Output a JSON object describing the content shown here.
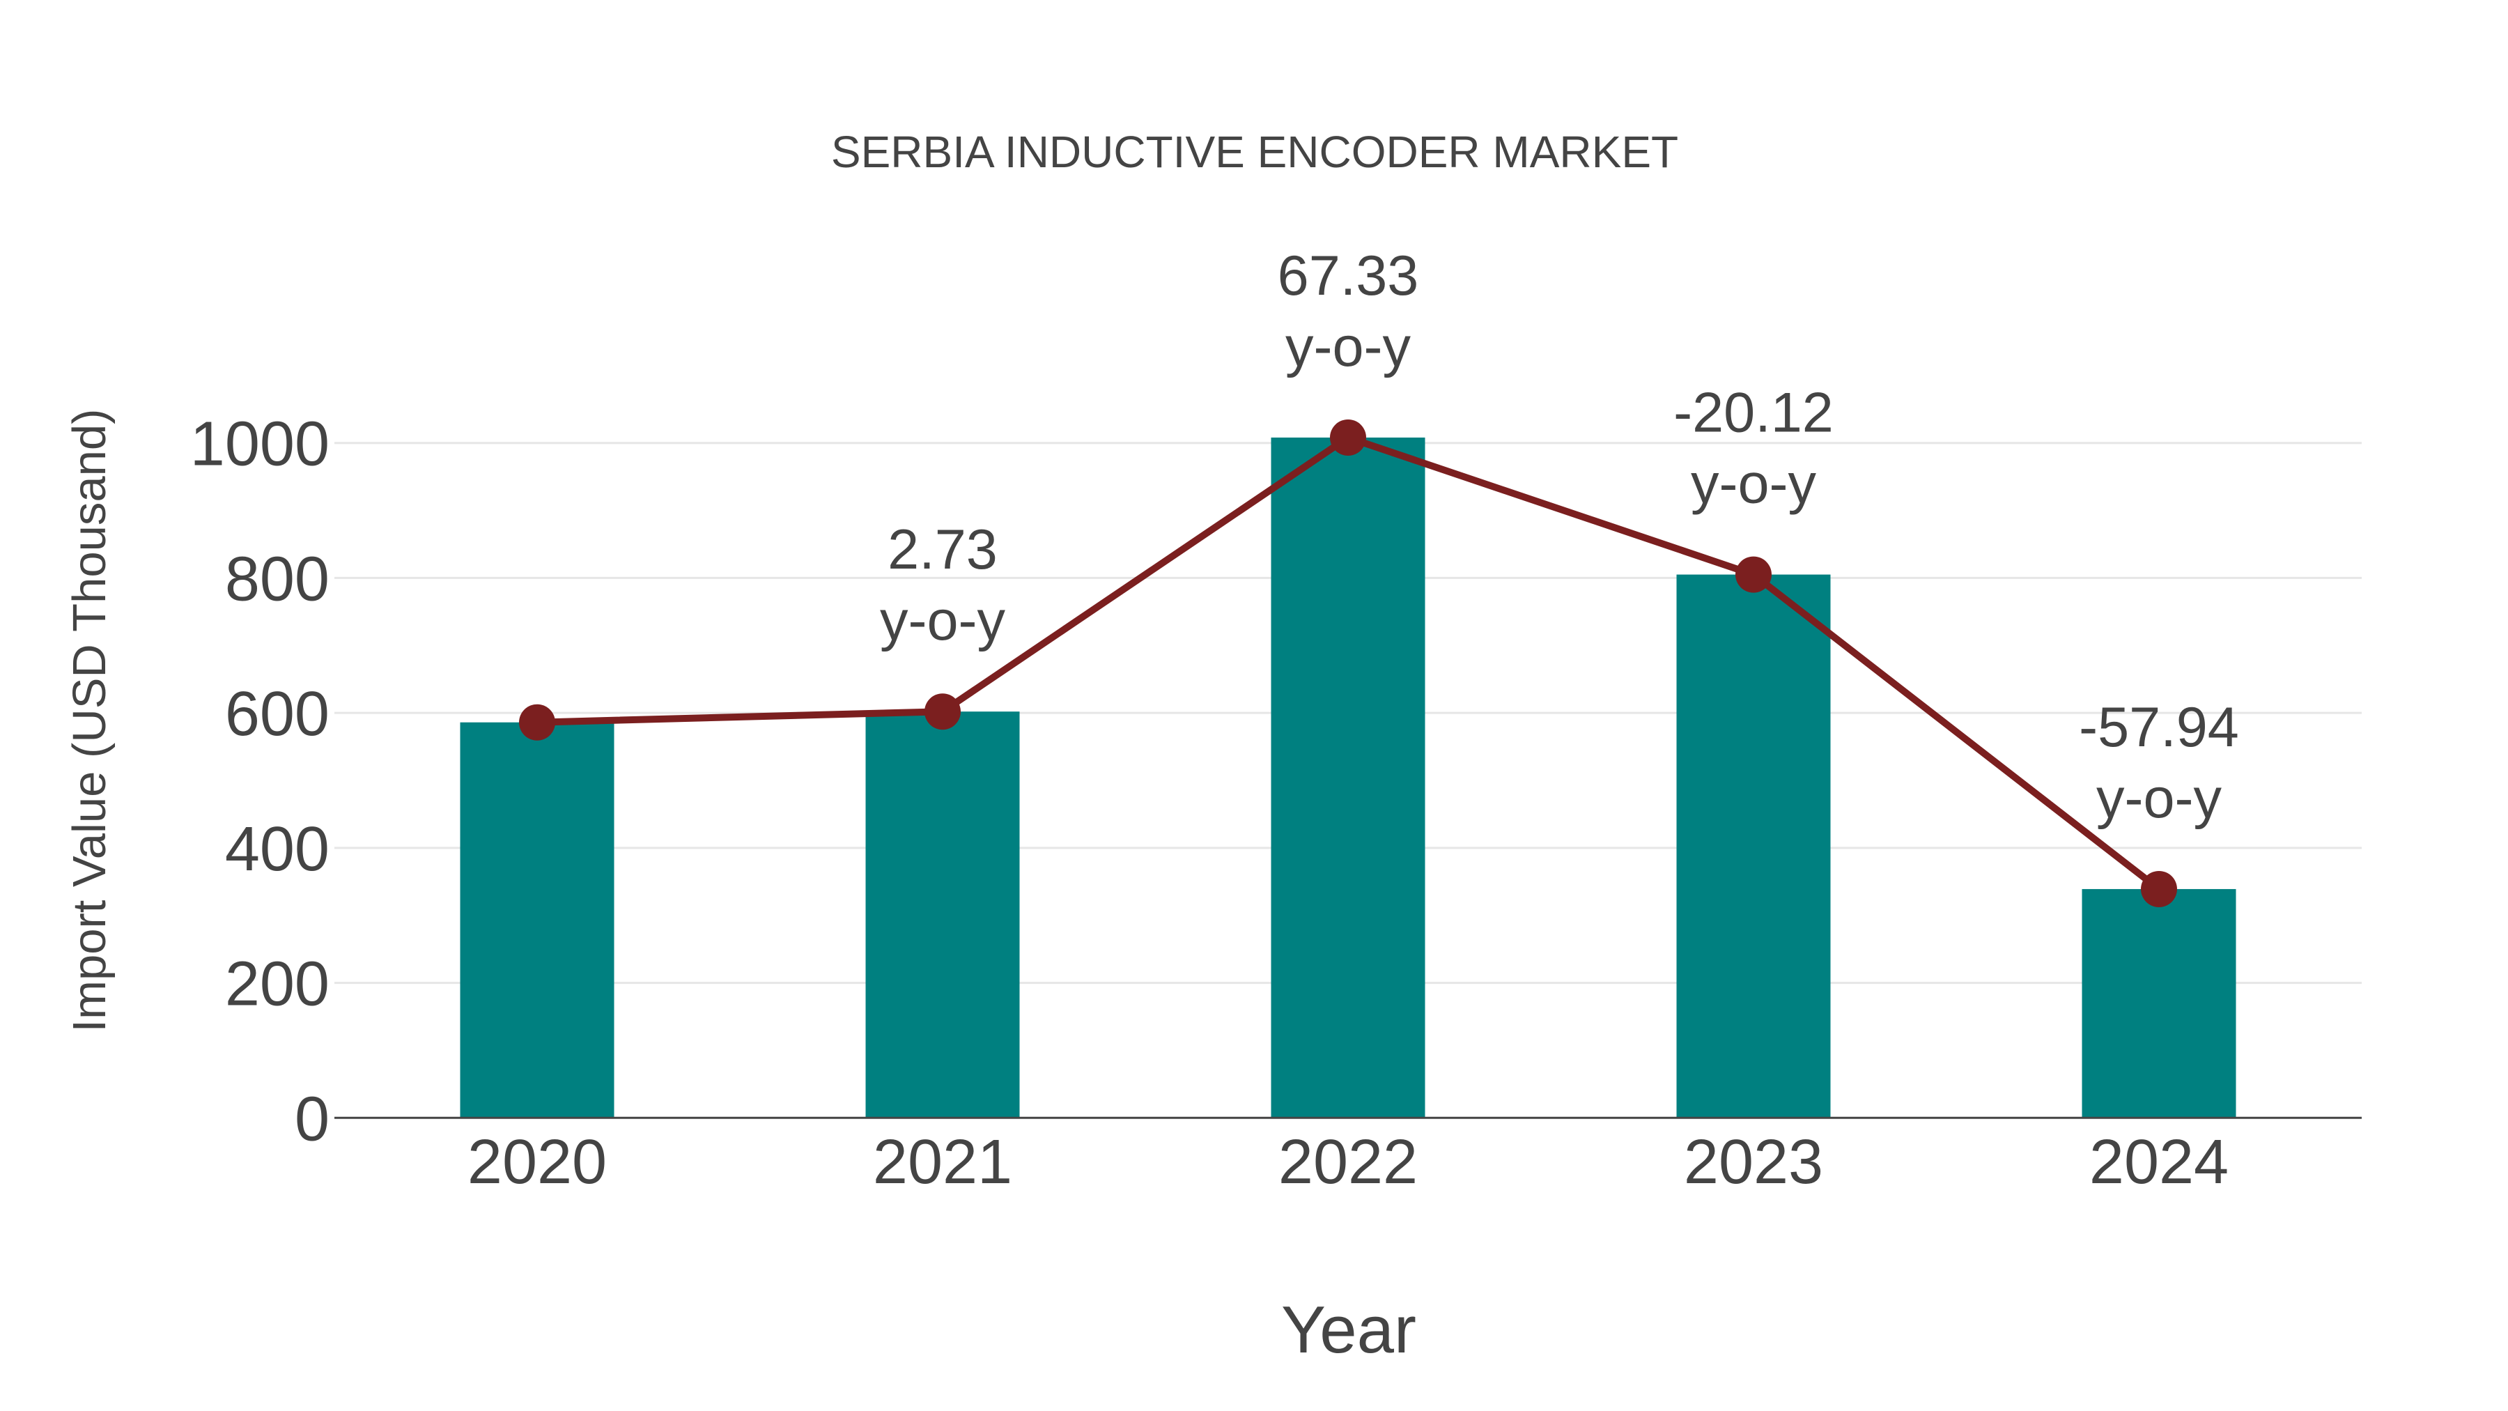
{
  "chart_data": {
    "type": "bar",
    "title": "SERBIA INDUCTIVE ENCODER MARKET",
    "xlabel": "Year",
    "ylabel": "Import Value (USD Thousand)",
    "categories": [
      "2020",
      "2021",
      "2022",
      "2023",
      "2024"
    ],
    "series": [
      {
        "name": "Import Value",
        "type": "bar",
        "color": "#008080",
        "values": [
          586,
          602,
          1008,
          805,
          339
        ]
      },
      {
        "name": "Import Value trend",
        "type": "line",
        "color": "#7b1f1f",
        "marker": "circle",
        "values": [
          586,
          602,
          1008,
          805,
          339
        ]
      }
    ],
    "annotations": [
      {
        "category": "2021",
        "value": "2.73",
        "suffix": "y-o-y"
      },
      {
        "category": "2022",
        "value": "67.33",
        "suffix": "y-o-y"
      },
      {
        "category": "2023",
        "value": "-20.12",
        "suffix": "y-o-y"
      },
      {
        "category": "2024",
        "value": "-57.94",
        "suffix": "y-o-y"
      }
    ],
    "yticks": [
      "0",
      "200",
      "400",
      "600",
      "800",
      "1000"
    ],
    "ylim": [
      0,
      1100
    ],
    "grid": true,
    "legend": "none"
  }
}
